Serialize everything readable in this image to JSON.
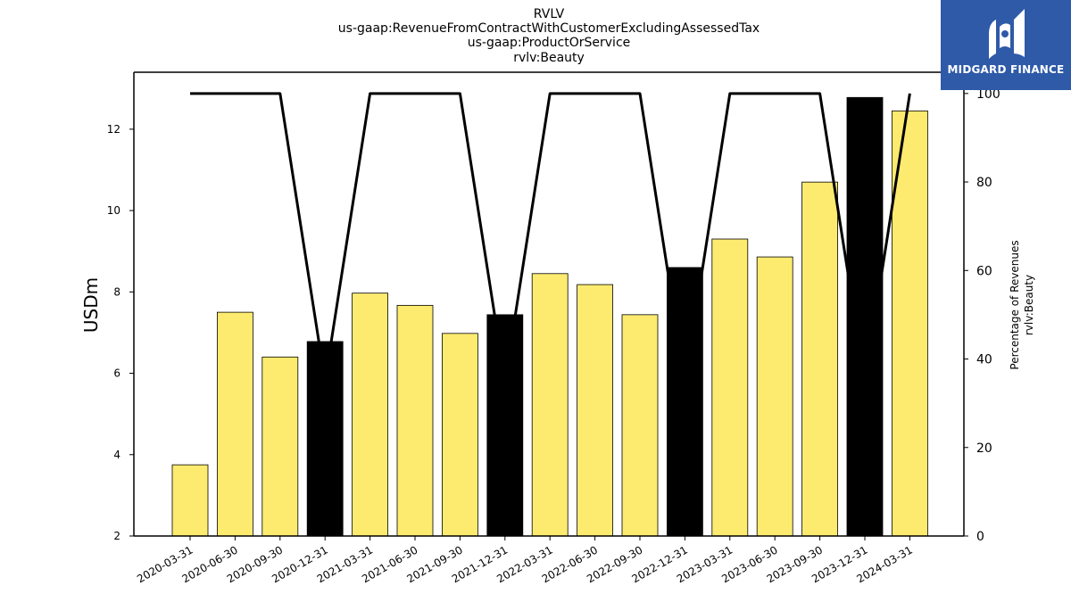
{
  "chart_data": {
    "type": "bar",
    "title_lines": [
      "RVLV",
      "us-gaap:RevenueFromContractWithCustomerExcludingAssessedTax",
      "us-gaap:ProductOrService",
      "rvlv:Beauty"
    ],
    "ylabel": "USDm",
    "ylabel_right": [
      "Percentage of Revenues",
      "rvlv:Beauty"
    ],
    "categories": [
      "2020-03-31",
      "2020-06-30",
      "2020-09-30",
      "2020-12-31",
      "2021-03-31",
      "2021-06-30",
      "2021-09-30",
      "2021-12-31",
      "2022-03-31",
      "2022-06-30",
      "2022-09-30",
      "2022-12-31",
      "2023-03-31",
      "2023-06-30",
      "2023-09-30",
      "2023-12-31",
      "2024-03-31"
    ],
    "values": [
      3.75,
      7.5,
      6.4,
      6.78,
      7.97,
      7.67,
      6.98,
      7.44,
      8.45,
      8.18,
      7.44,
      8.6,
      9.3,
      8.86,
      10.7,
      12.78,
      12.45
    ],
    "bar_colors": [
      "#fdeb70",
      "#fdeb70",
      "#fdeb70",
      "#000000",
      "#fdeb70",
      "#fdeb70",
      "#fdeb70",
      "#000000",
      "#fdeb70",
      "#fdeb70",
      "#fdeb70",
      "#000000",
      "#fdeb70",
      "#fdeb70",
      "#fdeb70",
      "#000000",
      "#fdeb70"
    ],
    "line_series": {
      "values": [
        100,
        100,
        100,
        35,
        100,
        100,
        100,
        35,
        100,
        100,
        100,
        35,
        100,
        100,
        100,
        35,
        100
      ],
      "color": "#000000"
    },
    "ylim": [
      2,
      13.4
    ],
    "yticks": [
      2,
      4,
      6,
      8,
      10,
      12
    ],
    "ylim_right": [
      0,
      104.8
    ],
    "yticks_right": [
      0,
      20,
      40,
      60,
      80,
      100
    ],
    "grid": false
  },
  "logo": {
    "text": "MIDGARD FINANCE",
    "background": "#2e5aa8"
  }
}
